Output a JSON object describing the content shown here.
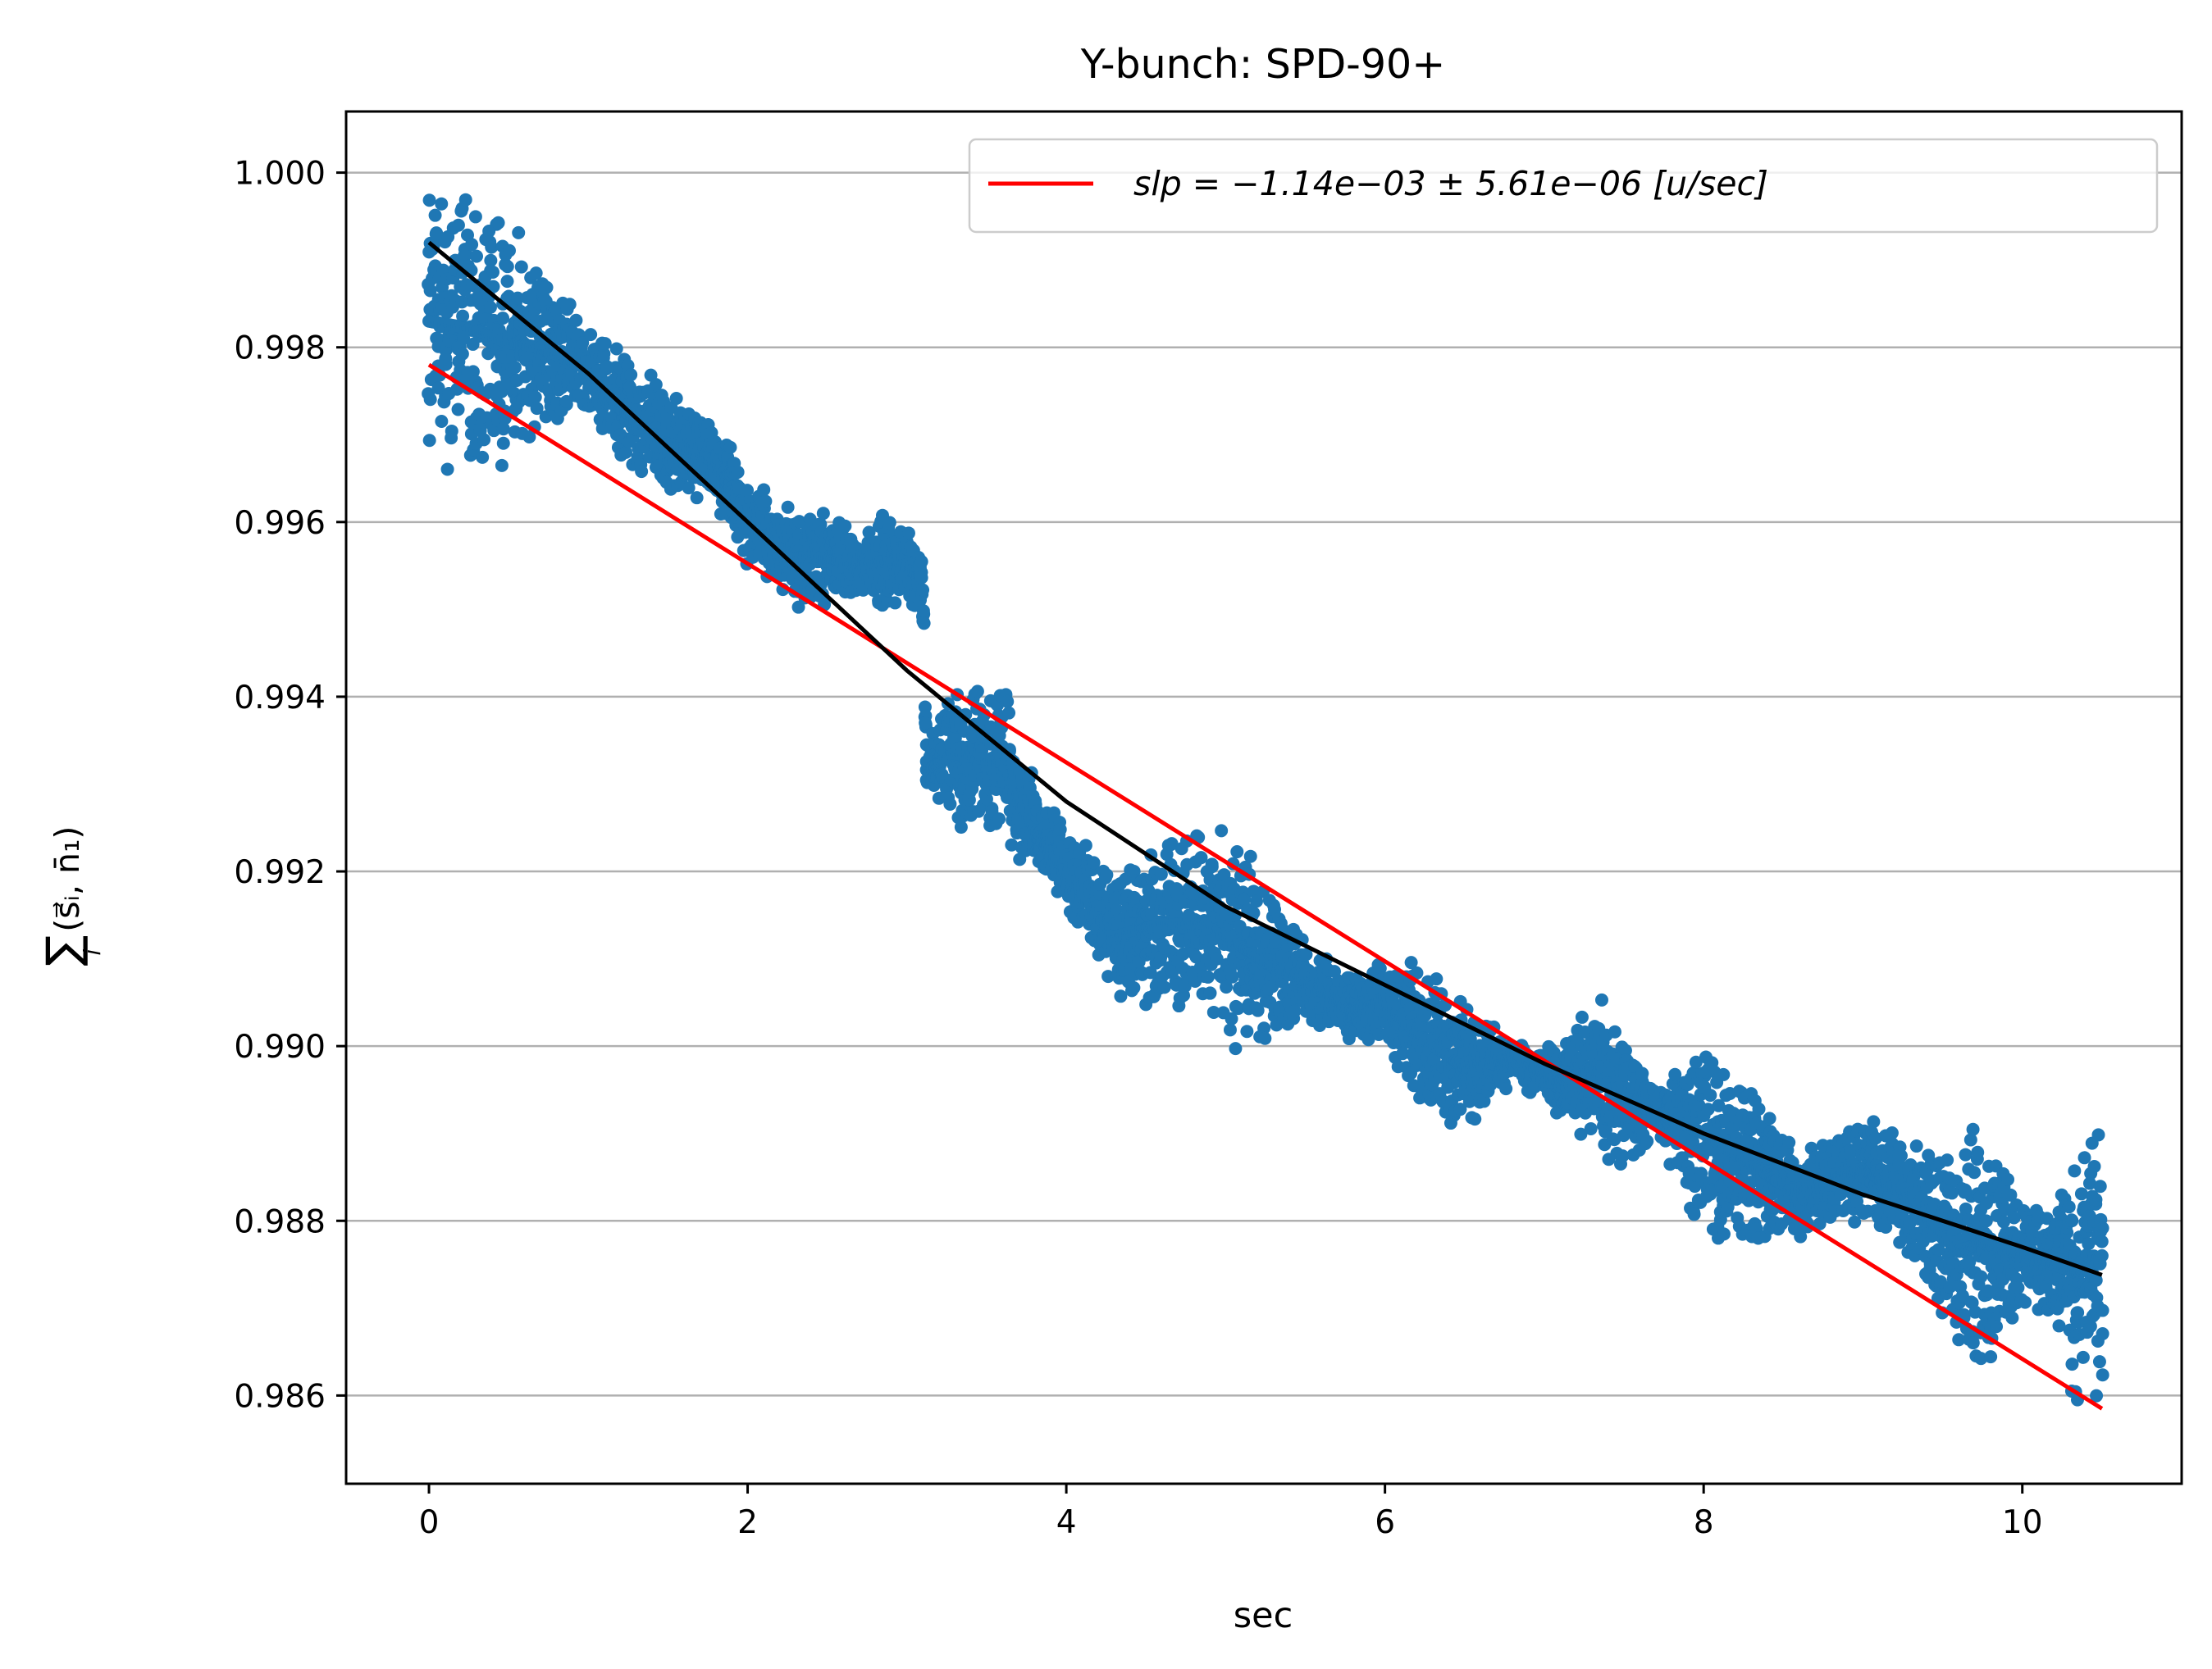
{
  "chart_data": {
    "type": "scatter",
    "title": "Y-bunch: SPD-90+",
    "xlabel": "sec",
    "ylabel_parts": {
      "sum": "∑",
      "sub": "i",
      "expr": "(s⃗ᵢ, n̄₁)"
    },
    "xlim": [
      -0.52,
      11.0
    ],
    "ylim": [
      0.98499,
      1.0007
    ],
    "xticks": [
      0,
      2,
      4,
      6,
      8,
      10
    ],
    "yticks": [
      0.986,
      0.988,
      0.99,
      0.992,
      0.994,
      0.996,
      0.998,
      1.0
    ],
    "xtick_labels": [
      "0",
      "2",
      "4",
      "6",
      "8",
      "10"
    ],
    "ytick_labels": [
      "0.986",
      "0.988",
      "0.990",
      "0.992",
      "0.994",
      "0.996",
      "0.998",
      "1.000"
    ],
    "grid": "horizontal",
    "legend": {
      "placement": "top-right",
      "entries": [
        {
          "label": "slp = −1.14e−03 ± 5.61e−06 [u/sec]",
          "color": "#ff0000"
        }
      ]
    },
    "series": [
      {
        "type": "scatter",
        "color": "#1f77b4",
        "envelope": [
          {
            "x": 0.0,
            "lo": 0.9966,
            "hi": 1.0
          },
          {
            "x": 0.3,
            "lo": 0.9965,
            "hi": 0.9999
          },
          {
            "x": 0.5,
            "lo": 0.9966,
            "hi": 0.9995
          },
          {
            "x": 0.7,
            "lo": 0.997,
            "hi": 0.999
          },
          {
            "x": 1.0,
            "lo": 0.9972,
            "hi": 0.9983
          },
          {
            "x": 1.2,
            "lo": 0.9965,
            "hi": 0.9981
          },
          {
            "x": 1.5,
            "lo": 0.9963,
            "hi": 0.9975
          },
          {
            "x": 1.8,
            "lo": 0.9962,
            "hi": 0.9972
          },
          {
            "x": 2.0,
            "lo": 0.9955,
            "hi": 0.9965
          },
          {
            "x": 2.3,
            "lo": 0.995,
            "hi": 0.9962
          },
          {
            "x": 2.5,
            "lo": 0.995,
            "hi": 0.9962
          },
          {
            "x": 2.7,
            "lo": 0.9952,
            "hi": 0.9958
          },
          {
            "x": 2.85,
            "lo": 0.9948,
            "hi": 0.9963
          },
          {
            "x": 3.0,
            "lo": 0.995,
            "hi": 0.996
          },
          {
            "x": 3.1,
            "lo": 0.995,
            "hi": 0.9957
          },
          {
            "x": 3.12,
            "lo": 0.9928,
            "hi": 0.9935
          },
          {
            "x": 3.3,
            "lo": 0.9925,
            "hi": 0.9942
          },
          {
            "x": 3.6,
            "lo": 0.9922,
            "hi": 0.9943
          },
          {
            "x": 3.8,
            "lo": 0.992,
            "hi": 0.993
          },
          {
            "x": 4.0,
            "lo": 0.9915,
            "hi": 0.9925
          },
          {
            "x": 4.3,
            "lo": 0.9905,
            "hi": 0.992
          },
          {
            "x": 4.6,
            "lo": 0.9903,
            "hi": 0.9925
          },
          {
            "x": 4.9,
            "lo": 0.9903,
            "hi": 0.9925
          },
          {
            "x": 5.1,
            "lo": 0.9898,
            "hi": 0.9925
          },
          {
            "x": 5.3,
            "lo": 0.99,
            "hi": 0.9918
          },
          {
            "x": 5.5,
            "lo": 0.9903,
            "hi": 0.9912
          },
          {
            "x": 5.8,
            "lo": 0.99,
            "hi": 0.9908
          },
          {
            "x": 6.0,
            "lo": 0.99,
            "hi": 0.991
          },
          {
            "x": 6.2,
            "lo": 0.9893,
            "hi": 0.991
          },
          {
            "x": 6.5,
            "lo": 0.989,
            "hi": 0.9905
          },
          {
            "x": 6.8,
            "lo": 0.9896,
            "hi": 0.9901
          },
          {
            "x": 7.1,
            "lo": 0.9892,
            "hi": 0.99
          },
          {
            "x": 7.3,
            "lo": 0.9888,
            "hi": 0.9907
          },
          {
            "x": 7.5,
            "lo": 0.9885,
            "hi": 0.9903
          },
          {
            "x": 7.7,
            "lo": 0.989,
            "hi": 0.9895
          },
          {
            "x": 8.0,
            "lo": 0.9878,
            "hi": 0.9902
          },
          {
            "x": 8.3,
            "lo": 0.9876,
            "hi": 0.9897
          },
          {
            "x": 8.6,
            "lo": 0.9878,
            "hi": 0.9888
          },
          {
            "x": 9.0,
            "lo": 0.988,
            "hi": 0.9892
          },
          {
            "x": 9.3,
            "lo": 0.9875,
            "hi": 0.989
          },
          {
            "x": 9.6,
            "lo": 0.9865,
            "hi": 0.9888
          },
          {
            "x": 9.75,
            "lo": 0.986,
            "hi": 0.9895
          },
          {
            "x": 10.0,
            "lo": 0.987,
            "hi": 0.9882
          },
          {
            "x": 10.2,
            "lo": 0.9868,
            "hi": 0.9882
          },
          {
            "x": 10.35,
            "lo": 0.9858,
            "hi": 0.989
          },
          {
            "x": 10.5,
            "lo": 0.9857,
            "hi": 0.9895
          }
        ]
      },
      {
        "type": "line",
        "color": "#ff0000",
        "x": [
          0.0,
          10.5
        ],
        "y": [
          0.9978,
          0.98585
        ]
      },
      {
        "type": "line",
        "color": "#000000",
        "x": [
          0.0,
          1.0,
          2.0,
          3.0,
          4.0,
          5.0,
          6.0,
          7.0,
          8.0,
          9.0,
          10.0,
          10.5
        ],
        "y": [
          0.9992,
          0.9977,
          0.996,
          0.9943,
          0.9928,
          0.9916,
          0.9907,
          0.9898,
          0.989,
          0.9883,
          0.9877,
          0.98738
        ]
      }
    ]
  }
}
